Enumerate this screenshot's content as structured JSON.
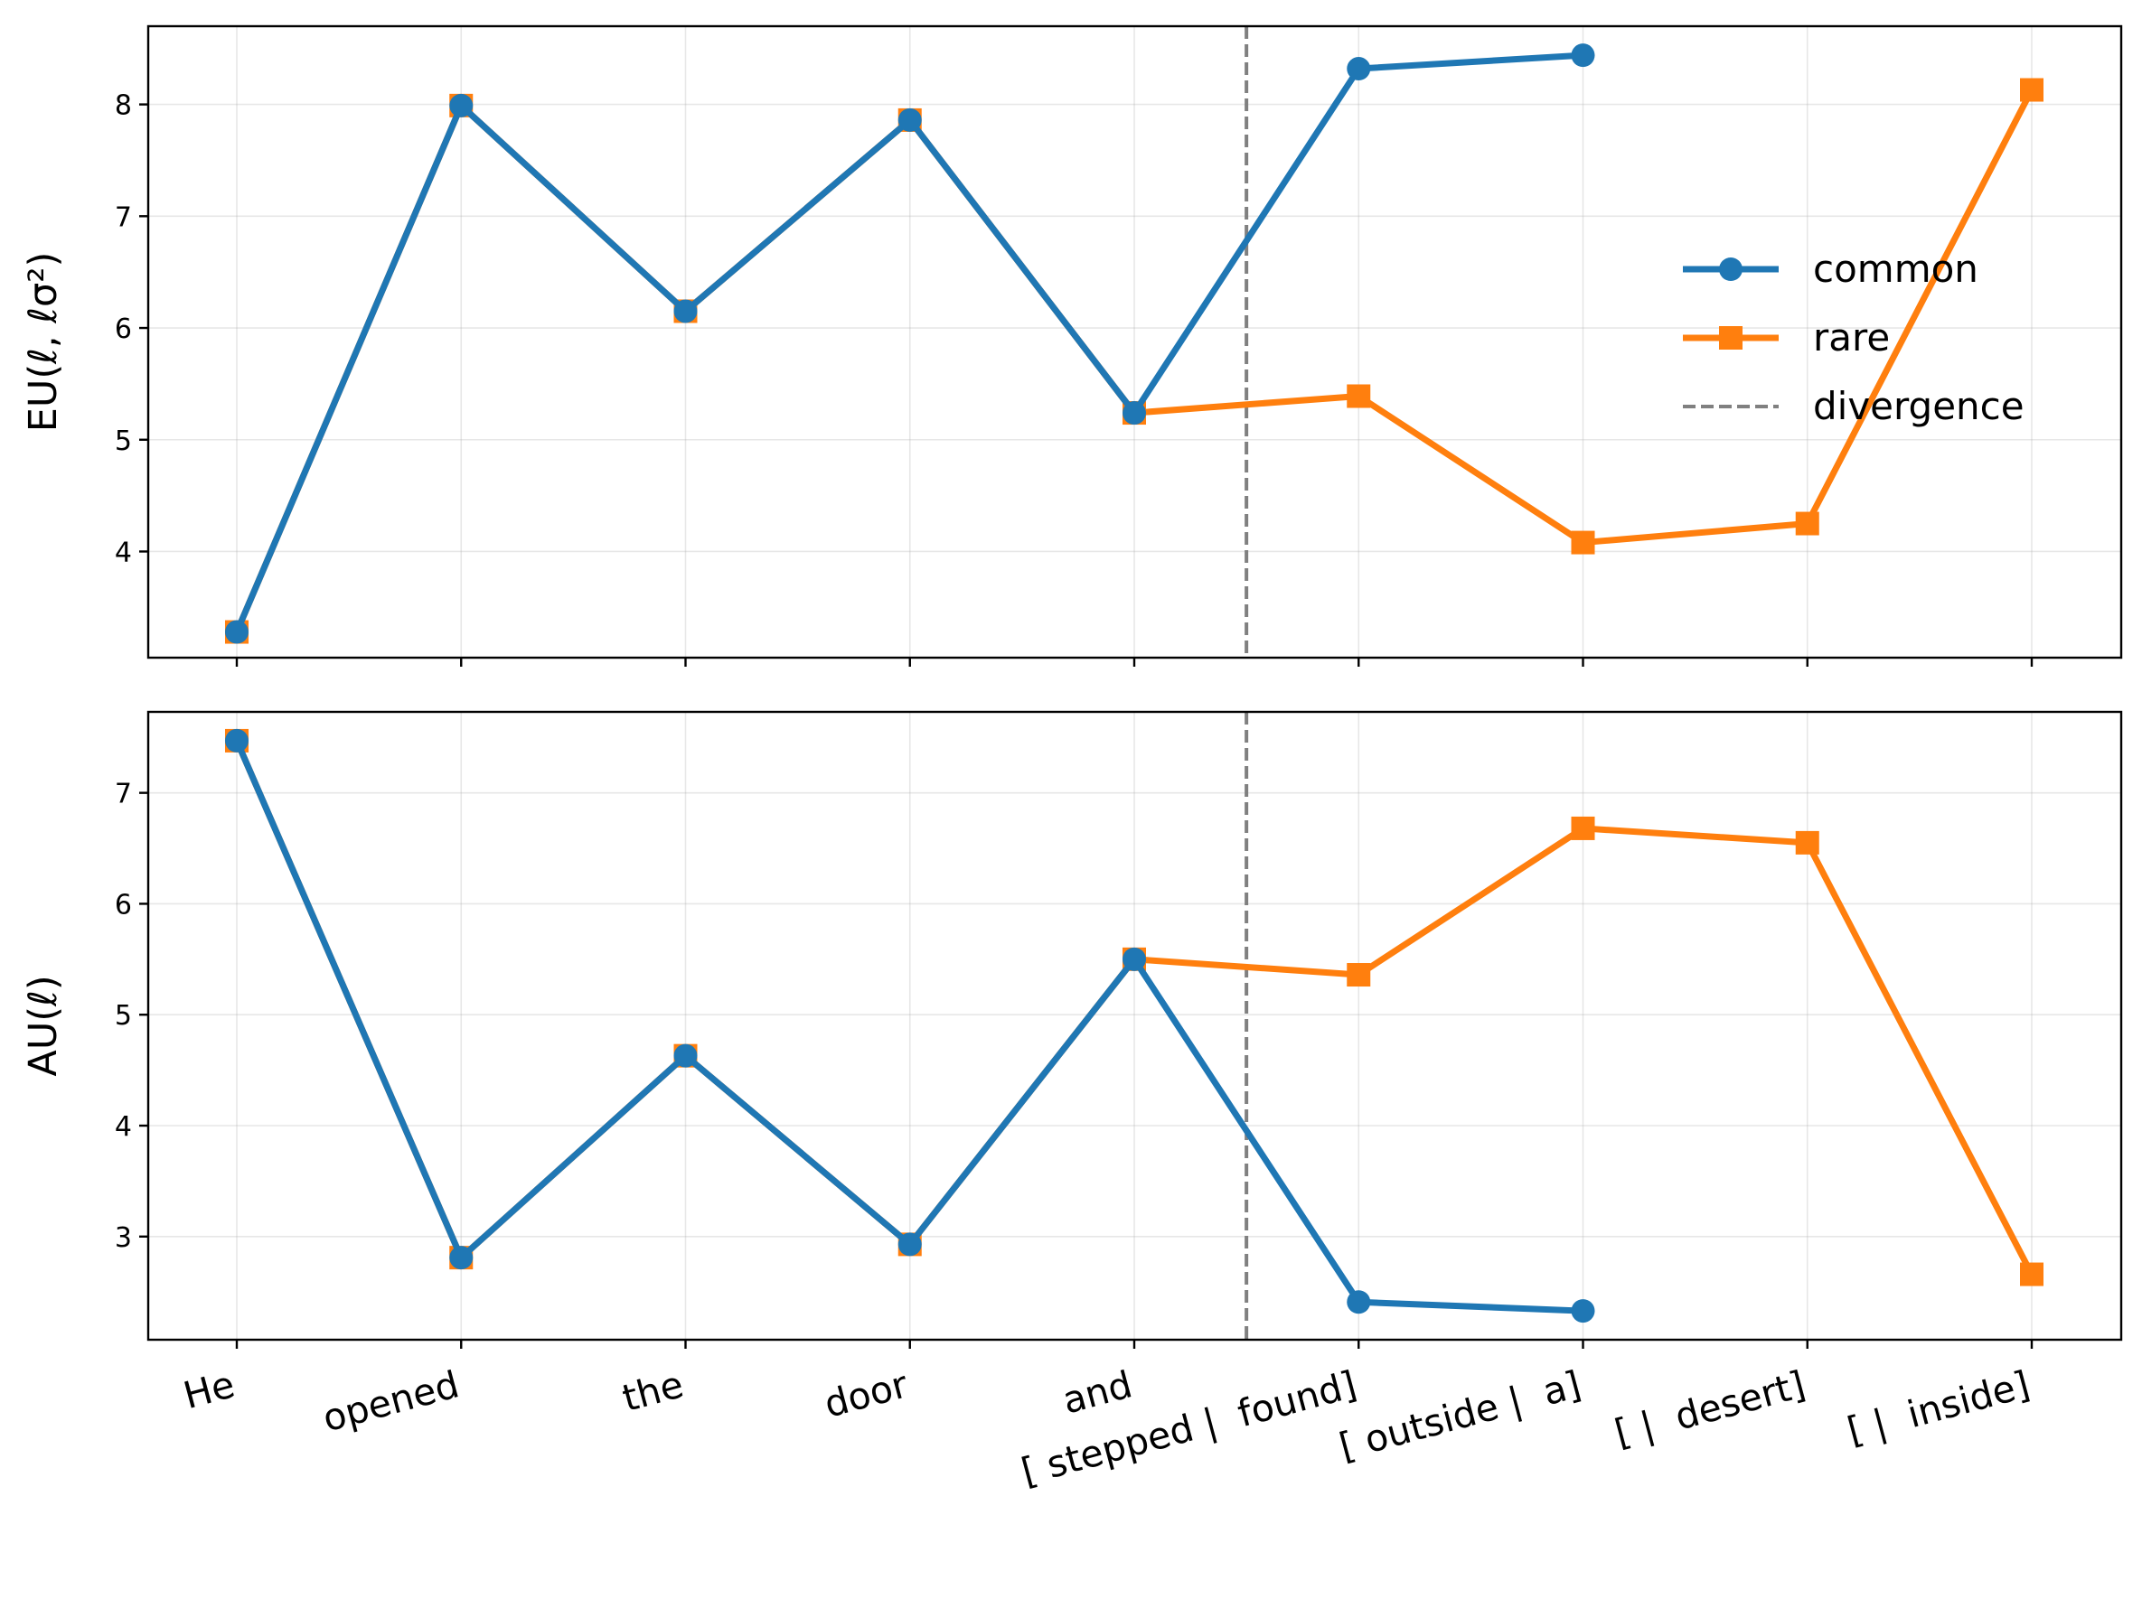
{
  "chart_data": {
    "type": "line",
    "categories": [
      "He",
      "opened",
      "the",
      "door",
      "and",
      "[ stepped |  found]",
      "[ outside |  a]",
      "[ |  desert]",
      "[ |  inside]"
    ],
    "divergence_x": 4.5,
    "legend": {
      "placement": "right",
      "entries": [
        {
          "key": "common",
          "label": "common",
          "style": "line-circle"
        },
        {
          "key": "rare",
          "label": "rare",
          "style": "line-square"
        },
        {
          "key": "divergence",
          "label": "divergence",
          "style": "dashed"
        }
      ]
    },
    "colors": {
      "common": "#1f77b4",
      "rare": "#ff7f0e",
      "divergence": "#808080"
    },
    "grid": true,
    "panels": [
      {
        "ylabel": "EU(ℓ, ℓσ²)",
        "ylim": [
          3.05,
          8.7
        ],
        "yticks": [
          4,
          5,
          6,
          7,
          8
        ],
        "series": [
          {
            "name": "rare",
            "values": [
              3.28,
              7.99,
              6.15,
              7.86,
              5.24,
              5.39,
              4.08,
              4.25,
              8.13
            ]
          },
          {
            "name": "common",
            "values": [
              3.28,
              7.99,
              6.15,
              7.86,
              5.24,
              8.32,
              8.44,
              null,
              null
            ]
          }
        ]
      },
      {
        "ylabel": "AU(ℓ)",
        "ylim": [
          2.07,
          7.73
        ],
        "yticks": [
          3,
          4,
          5,
          6,
          7
        ],
        "series": [
          {
            "name": "rare",
            "values": [
              7.47,
              2.81,
              4.63,
              2.93,
              5.5,
              5.36,
              6.68,
              6.55,
              2.66
            ]
          },
          {
            "name": "common",
            "values": [
              7.47,
              2.81,
              4.63,
              2.93,
              5.5,
              2.41,
              2.33,
              null,
              null
            ]
          }
        ]
      }
    ]
  }
}
